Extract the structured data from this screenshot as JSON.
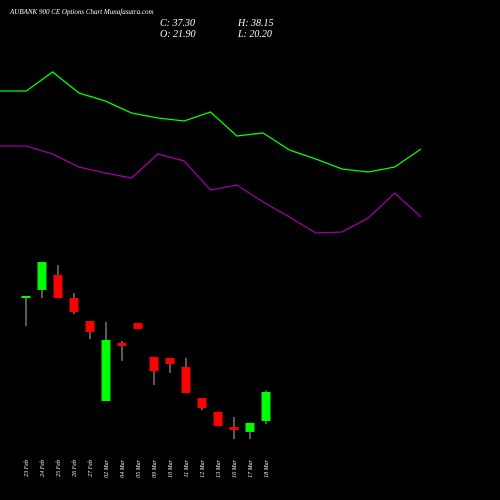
{
  "chart_data": [
    {
      "type": "line",
      "categories": [
        null,
        null,
        null,
        null,
        null,
        null,
        null,
        null,
        null,
        null,
        null,
        null,
        null,
        null,
        null,
        null,
        null
      ],
      "ylim": [
        0,
        100
      ],
      "series": [
        {
          "color": "#00ff00",
          "values": [
            79.5,
            79.5,
            89,
            78.5,
            74.5,
            68.5,
            66,
            64.5,
            69,
            57,
            58.5,
            50,
            45.5,
            40.5,
            39,
            41.5,
            50.5
          ]
        },
        {
          "color": "#a000a0",
          "values": [
            52,
            52,
            48,
            41.5,
            38.5,
            36,
            48,
            44.5,
            30,
            32.5,
            24,
            16.5,
            8.5,
            9,
            16,
            28.5,
            16.5
          ]
        }
      ]
    },
    {
      "type": "candlestick",
      "title": "AUBANK 900 CE Options Chart Munafasutra.com",
      "ohlc_labels": [
        "C: 37.30",
        "H: 38.15",
        "O: 21.90",
        "L: 20.20"
      ],
      "categories": [
        "23 Feb",
        "24 Feb",
        "25 Feb",
        "26 Feb",
        "27 Feb",
        "02 Mar",
        "04 Mar",
        "05 Mar",
        "09 Mar",
        "10 Mar",
        "11 Mar",
        "12 Mar",
        "13 Mar",
        "16 Mar",
        "17 Mar",
        "18 Mar"
      ],
      "open": [
        87.2,
        91.5,
        99.4,
        87.2,
        75.0,
        32.5,
        63.3,
        73.9,
        55.9,
        55.4,
        50.6,
        34.1,
        26.7,
        18.7,
        16.1,
        21.9
      ],
      "high": [
        88.3,
        106.3,
        104.7,
        89.9,
        75.0,
        74.5,
        64.4,
        73.9,
        55.9,
        55.4,
        55.4,
        34.1,
        26.7,
        24.0,
        20.9,
        38.15
      ],
      "low": [
        72.3,
        87.2,
        87.2,
        78.7,
        65.4,
        32.5,
        53.8,
        70.8,
        41.0,
        47.4,
        36.8,
        27.7,
        19.2,
        12.3,
        12.3,
        20.2
      ],
      "close": [
        88.3,
        106.3,
        87.2,
        79.8,
        69.2,
        64.9,
        61.7,
        70.8,
        48.4,
        52.2,
        36.8,
        28.8,
        19.2,
        17.1,
        20.9,
        37.3
      ],
      "up_color": "#00ff00",
      "down_color": "#ff0000",
      "ylim": [
        6.5,
        112.7
      ]
    }
  ]
}
